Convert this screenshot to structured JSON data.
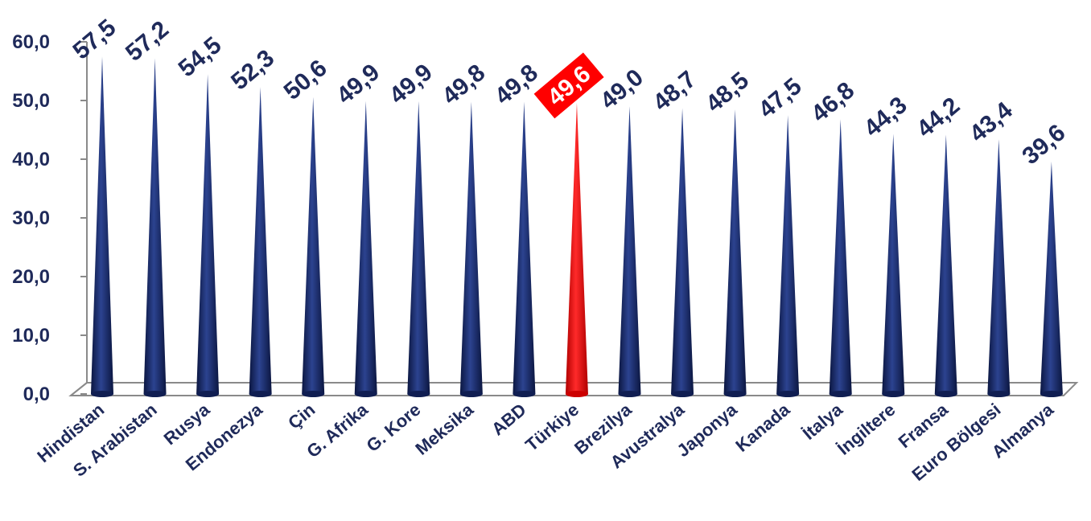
{
  "chart_data": {
    "type": "bar",
    "title": "",
    "xlabel": "",
    "ylabel": "",
    "ylim": [
      0,
      60
    ],
    "yticks": [
      "0,0",
      "10,0",
      "20,0",
      "30,0",
      "40,0",
      "50,0",
      "60,0"
    ],
    "categories": [
      "Hindistan",
      "S. Arabistan",
      "Rusya",
      "Endonezya",
      "Çin",
      "G. Afrika",
      "G. Kore",
      "Meksika",
      "ABD",
      "Türkiye",
      "Brezilya",
      "Avustralya",
      "Japonya",
      "Kanada",
      "İtalya",
      "İngiltere",
      "Fransa",
      "Euro Bölgesi",
      "Almanya"
    ],
    "values": [
      57.5,
      57.2,
      54.5,
      52.3,
      50.6,
      49.9,
      49.9,
      49.8,
      49.8,
      49.6,
      49.0,
      48.7,
      48.5,
      47.5,
      46.8,
      44.3,
      44.2,
      43.4,
      39.6
    ],
    "value_labels": [
      "57,5",
      "57,2",
      "54,5",
      "52,3",
      "50,6",
      "49,9",
      "49,9",
      "49,8",
      "49,8",
      "49,6",
      "49,0",
      "48,7",
      "48,5",
      "47,5",
      "46,8",
      "44,3",
      "44,2",
      "43,4",
      "39,6"
    ],
    "highlight_category": "Türkiye",
    "colors": {
      "bar": "#1a2f6e",
      "highlight": "#ff0000",
      "text": "#1f2a5a"
    },
    "grid": false,
    "legend": "none"
  }
}
